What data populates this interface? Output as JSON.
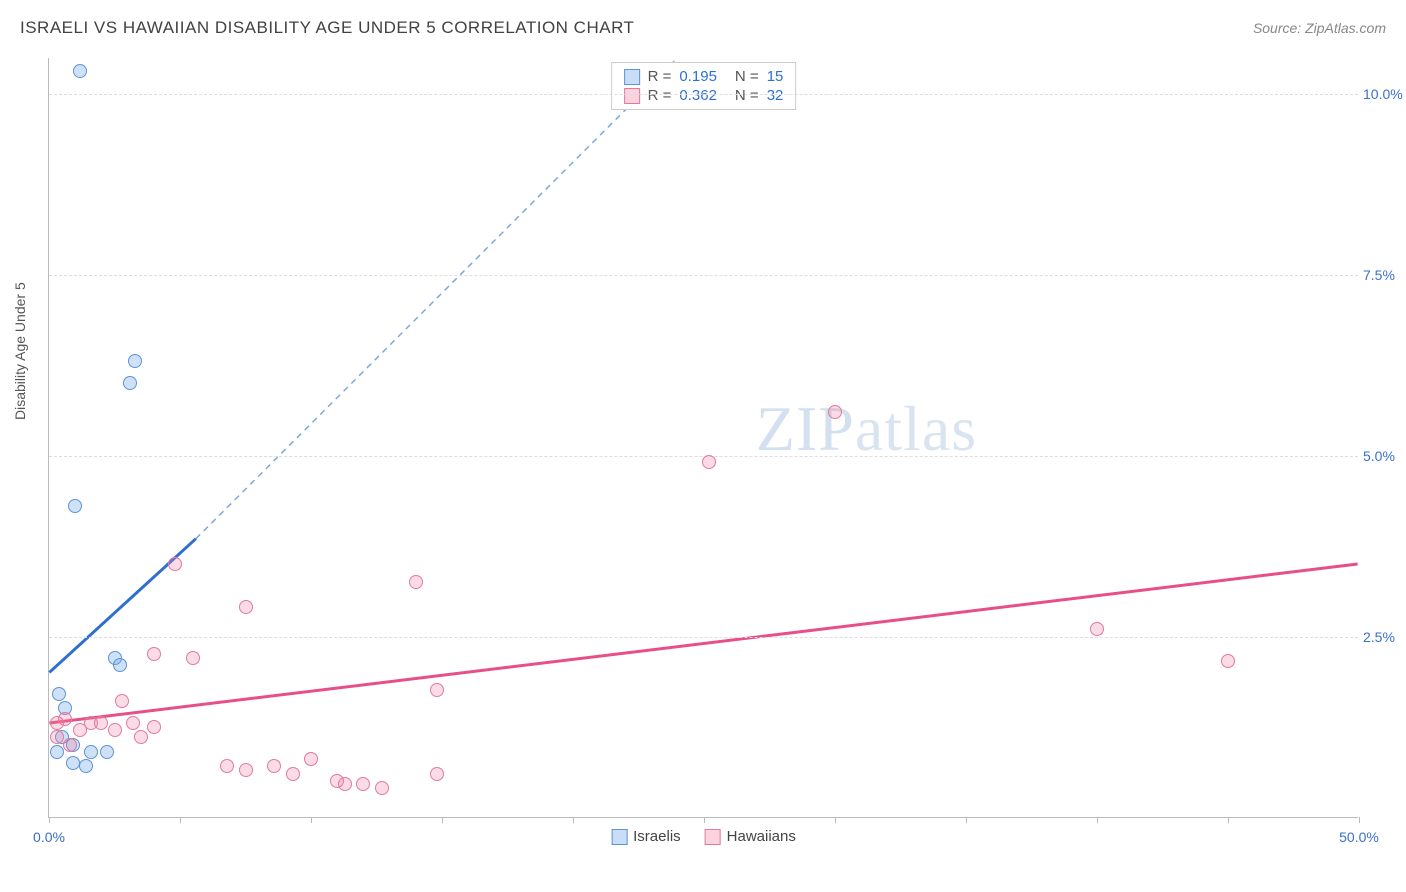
{
  "title": "ISRAELI VS HAWAIIAN DISABILITY AGE UNDER 5 CORRELATION CHART",
  "source": "Source: ZipAtlas.com",
  "y_axis_label": "Disability Age Under 5",
  "watermark": {
    "zip": "ZIP",
    "atlas": "atlas"
  },
  "chart": {
    "type": "scatter",
    "background_color": "#ffffff",
    "grid_color": "#dddddd",
    "xlim": [
      0,
      50
    ],
    "ylim": [
      0,
      10.5
    ],
    "x_ticks": [
      0,
      5,
      10,
      15,
      20,
      25,
      30,
      35,
      40,
      45,
      50
    ],
    "x_tick_labels": {
      "0": "0.0%",
      "50": "50.0%"
    },
    "y_ticks": [
      2.5,
      5.0,
      7.5,
      10.0
    ],
    "y_tick_labels": [
      "2.5%",
      "5.0%",
      "7.5%",
      "10.0%"
    ],
    "series": [
      {
        "name": "Israelis",
        "color_fill": "rgba(118,169,232,0.35)",
        "color_stroke": "#5e93d6",
        "marker_size": 14,
        "points": [
          [
            1.2,
            10.3
          ],
          [
            3.3,
            6.3
          ],
          [
            3.1,
            6.0
          ],
          [
            1.0,
            4.3
          ],
          [
            2.5,
            2.2
          ],
          [
            2.7,
            2.1
          ],
          [
            0.4,
            1.7
          ],
          [
            0.6,
            1.5
          ],
          [
            0.5,
            1.1
          ],
          [
            0.9,
            1.0
          ],
          [
            0.3,
            0.9
          ],
          [
            1.6,
            0.9
          ],
          [
            2.2,
            0.9
          ],
          [
            0.9,
            0.75
          ],
          [
            1.4,
            0.7
          ]
        ],
        "trend_line": {
          "x1": 0,
          "y1": 2.0,
          "x2": 5.6,
          "y2": 3.85,
          "color": "#2f6fd0",
          "width": 3
        },
        "trend_line_ext": {
          "x1": 5.6,
          "y1": 3.85,
          "x2": 24.0,
          "y2": 10.5,
          "color": "#7ba8e0",
          "dash": "6,5",
          "width": 1.5
        }
      },
      {
        "name": "Hawaiians",
        "color_fill": "rgba(240,130,160,0.28)",
        "color_stroke": "#e07a9e",
        "marker_size": 14,
        "points": [
          [
            30.0,
            5.6
          ],
          [
            25.2,
            4.9
          ],
          [
            4.8,
            3.5
          ],
          [
            14.0,
            3.25
          ],
          [
            7.5,
            2.9
          ],
          [
            40.0,
            2.6
          ],
          [
            4.0,
            2.25
          ],
          [
            5.5,
            2.2
          ],
          [
            45.0,
            2.15
          ],
          [
            14.8,
            1.75
          ],
          [
            2.8,
            1.6
          ],
          [
            0.6,
            1.35
          ],
          [
            0.3,
            1.3
          ],
          [
            1.6,
            1.3
          ],
          [
            2.0,
            1.3
          ],
          [
            3.2,
            1.3
          ],
          [
            4.0,
            1.25
          ],
          [
            2.5,
            1.2
          ],
          [
            0.3,
            1.1
          ],
          [
            3.5,
            1.1
          ],
          [
            0.8,
            1.0
          ],
          [
            6.8,
            0.7
          ],
          [
            7.5,
            0.65
          ],
          [
            8.6,
            0.7
          ],
          [
            10.0,
            0.8
          ],
          [
            9.3,
            0.6
          ],
          [
            14.8,
            0.6
          ],
          [
            11.3,
            0.45
          ],
          [
            12.0,
            0.45
          ],
          [
            12.7,
            0.4
          ],
          [
            11.0,
            0.5
          ],
          [
            1.2,
            1.2
          ]
        ],
        "trend_line": {
          "x1": 0,
          "y1": 1.3,
          "x2": 50,
          "y2": 3.5,
          "color": "#e84e87",
          "width": 3
        }
      }
    ]
  },
  "stats": [
    {
      "swatch": "blue",
      "r_label": "R =",
      "r": "0.195",
      "n_label": "N =",
      "n": "15"
    },
    {
      "swatch": "pink",
      "r_label": "R =",
      "r": "0.362",
      "n_label": "N =",
      "n": "32"
    }
  ],
  "legend": [
    {
      "swatch": "blue",
      "label": "Israelis"
    },
    {
      "swatch": "pink",
      "label": "Hawaiians"
    }
  ]
}
